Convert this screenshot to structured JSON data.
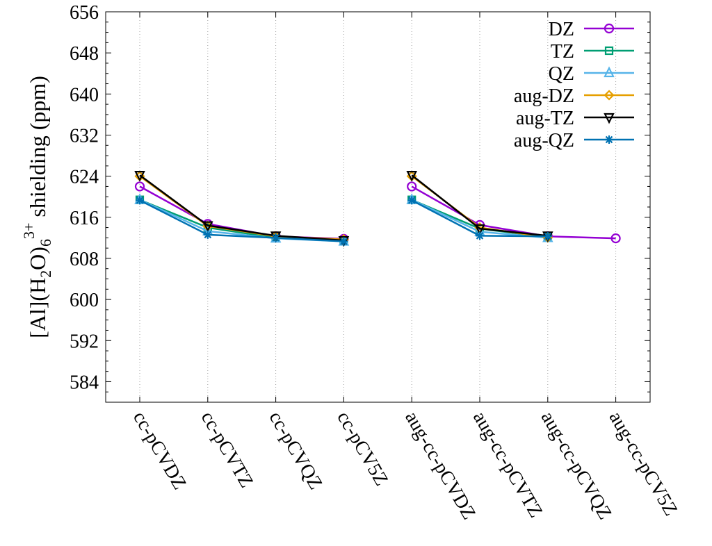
{
  "chart_data": {
    "type": "line",
    "ylabel_parts": {
      "a": "[Al](H",
      "sub1": "2",
      "b": "O)",
      "sub2": "6",
      "sup": "3+",
      "c": " shielding (ppm)"
    },
    "xlabel": "",
    "ylim": [
      580,
      656
    ],
    "yticks": [
      584,
      592,
      600,
      608,
      616,
      624,
      632,
      640,
      648,
      656
    ],
    "categories": [
      "cc-pCVDZ",
      "cc-pCVTZ",
      "cc-pCVQZ",
      "cc-pCV5Z",
      "aug-cc-pCVDZ",
      "aug-cc-pCVTZ",
      "aug-cc-pCVQZ",
      "aug-cc-pCV5Z"
    ],
    "grid": "vertical-dotted",
    "legend_position": "top-right",
    "series": [
      {
        "name": "DZ",
        "color": "#9400d3",
        "marker": "circle",
        "values": [
          622.0,
          614.7,
          612.3,
          611.8,
          622.0,
          614.5,
          612.3,
          611.9
        ]
      },
      {
        "name": "TZ",
        "color": "#009e73",
        "marker": "square",
        "values": [
          619.4,
          614.0,
          612.0,
          611.4,
          619.4,
          613.8,
          612.1,
          null
        ]
      },
      {
        "name": "QZ",
        "color": "#56b4e9",
        "marker": "triangle-up",
        "values": [
          619.4,
          613.3,
          611.9,
          611.3,
          619.4,
          613.2,
          612.0,
          null
        ]
      },
      {
        "name": "aug-DZ",
        "color": "#e69f00",
        "marker": "diamond",
        "values": [
          624.0,
          614.3,
          612.3,
          611.7,
          624.0,
          614.0,
          612.1,
          null
        ]
      },
      {
        "name": "aug-TZ",
        "color": "#000000",
        "marker": "triangle-down",
        "values": [
          624.2,
          614.4,
          612.4,
          611.5,
          624.2,
          613.8,
          612.4,
          null
        ]
      },
      {
        "name": "aug-QZ",
        "color": "#0072b2",
        "marker": "star",
        "values": [
          619.3,
          612.6,
          612.0,
          611.3,
          619.3,
          612.4,
          612.3,
          null
        ]
      }
    ]
  }
}
